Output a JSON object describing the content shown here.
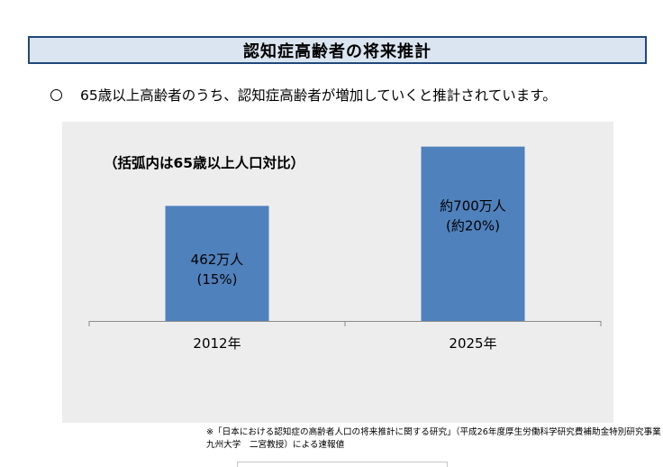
{
  "page": {
    "title": "認知症高齢者の将来推計",
    "bullet_text": "65歳以上高齢者のうち、認知症高齢者が増加していくと推計されています。",
    "footnote_line1": "※「日本における認知症の高齢者人口の将来推計に関する研究」（平成26年度厚生労働科学研究費補助金特別研究事業",
    "footnote_line2": "九州大学　二宮教授）による速報値"
  },
  "chart_data": {
    "type": "bar",
    "annotation": "（括弧内は65歳以上人口対比）",
    "categories": [
      "2012年",
      "2025年"
    ],
    "values": [
      462,
      700
    ],
    "units": "万人",
    "ratios_percent": [
      15,
      20
    ],
    "data_labels": [
      {
        "line1": "462万人",
        "line2": "(15%)"
      },
      {
        "line1": "約700万人",
        "line2": "(約20%)"
      }
    ],
    "ylim": [
      0,
      800
    ],
    "grid": false,
    "legend": "none",
    "bar_color": "#4f81bd"
  }
}
